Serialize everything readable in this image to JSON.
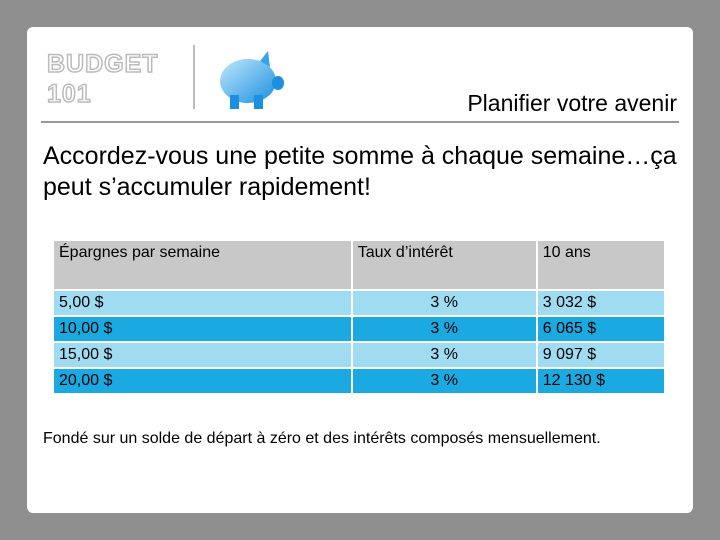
{
  "header": {
    "logo": [
      "BUDGET",
      "101"
    ],
    "title": "Planifier votre avenir"
  },
  "headline": "Accordez-vous une petite somme à chaque semaine…ça peut s’accumuler rapidement!",
  "table": {
    "columns": [
      "Épargnes par semaine",
      "Taux d’intérêt",
      "10 ans"
    ],
    "rows": [
      [
        "5,00 $",
        "3 %",
        "3 032 $"
      ],
      [
        "10,00 $",
        "3 %",
        "6 065 $"
      ],
      [
        "15,00 $",
        "3 %",
        "9 097 $"
      ],
      [
        "20,00 $",
        "3 %",
        "12 130 $"
      ]
    ]
  },
  "footnote": "Fondé sur un solde de départ à zéro et des intérêts composés mensuellement."
}
